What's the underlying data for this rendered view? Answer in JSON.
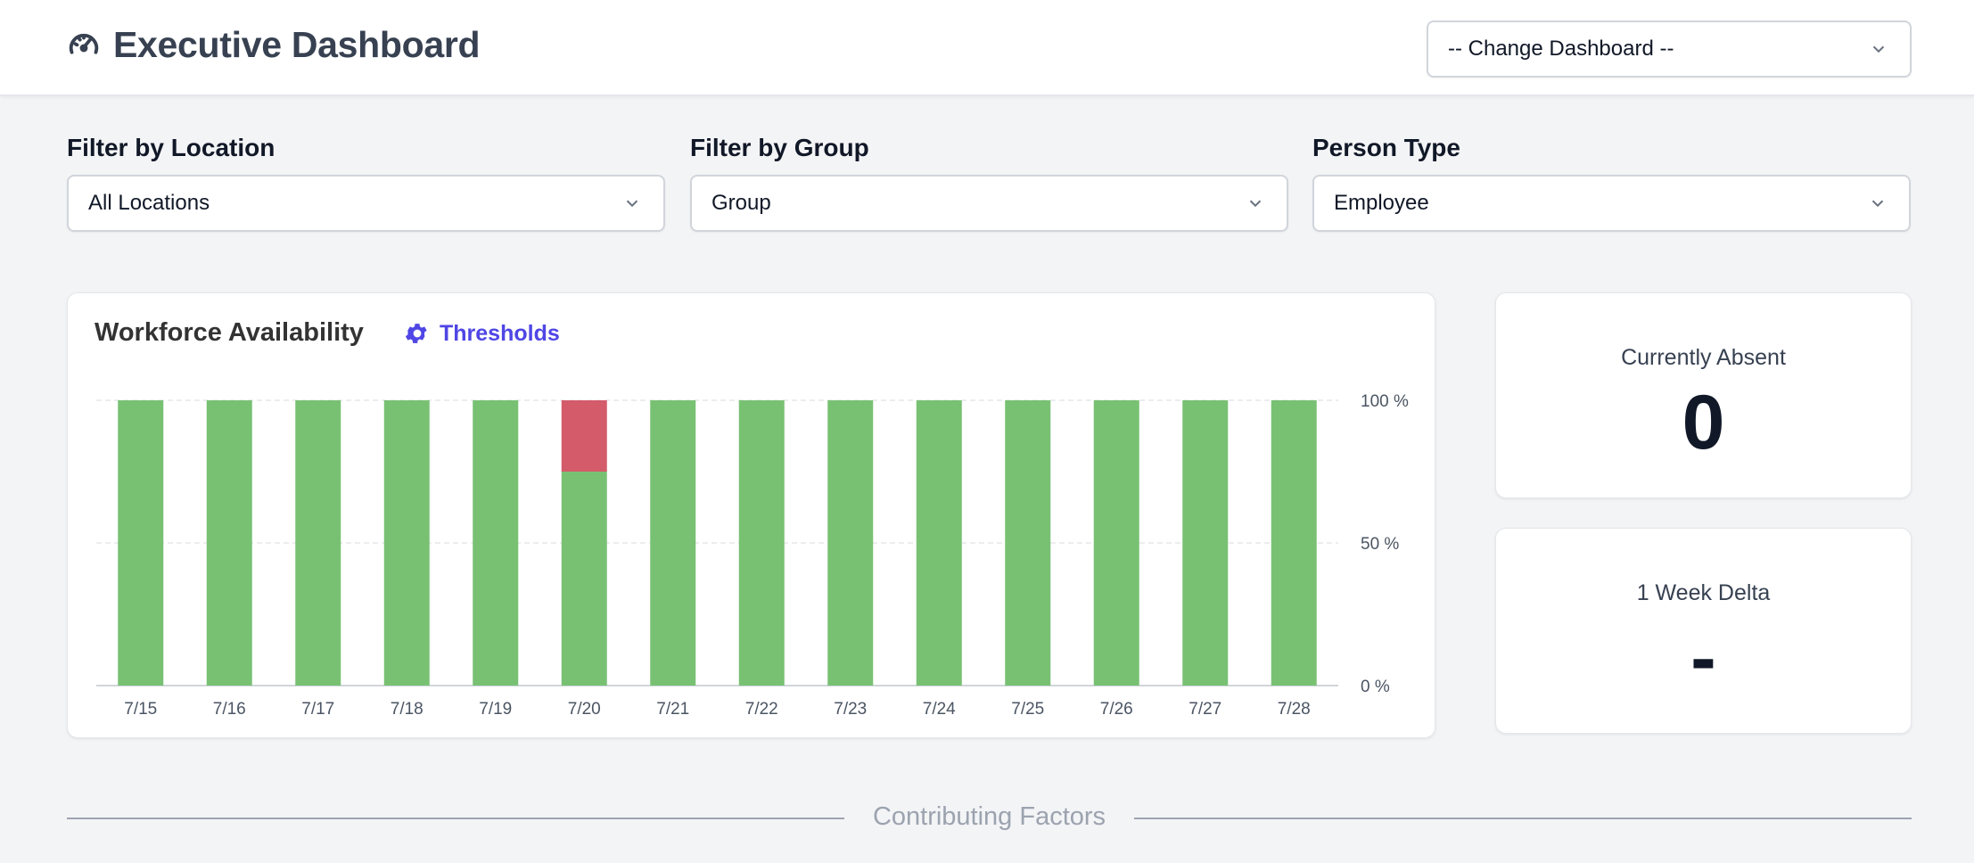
{
  "header": {
    "title": "Executive Dashboard",
    "icon": "gauge-icon",
    "dashboard_select": {
      "value": "-- Change Dashboard --"
    }
  },
  "filters": [
    {
      "label": "Filter by Location",
      "value": "All Locations"
    },
    {
      "label": "Filter by Group",
      "value": "Group"
    },
    {
      "label": "Person Type",
      "value": "Employee"
    }
  ],
  "workforce_card": {
    "title": "Workforce Availability",
    "thresholds_label": "Thresholds",
    "thresholds_icon": "gear-icon"
  },
  "kpis": [
    {
      "label": "Currently Absent",
      "value": "0"
    },
    {
      "label": "1 Week Delta",
      "value": "-"
    }
  ],
  "section": {
    "title": "Contributing Factors"
  },
  "colors": {
    "available": "#78c173",
    "unavailable": "#d45b6a",
    "accent": "#4f46e5"
  },
  "chart_data": {
    "type": "bar",
    "stacked": true,
    "categories": [
      "7/15",
      "7/16",
      "7/17",
      "7/18",
      "7/19",
      "7/20",
      "7/21",
      "7/22",
      "7/23",
      "7/24",
      "7/25",
      "7/26",
      "7/27",
      "7/28"
    ],
    "series": [
      {
        "values": [
          100,
          100,
          100,
          100,
          100,
          75,
          100,
          100,
          100,
          100,
          100,
          100,
          100,
          100
        ],
        "color": "#78c173"
      },
      {
        "values": [
          0,
          0,
          0,
          0,
          0,
          25,
          0,
          0,
          0,
          0,
          0,
          0,
          0,
          0
        ],
        "color": "#d45b6a"
      }
    ],
    "y_ticks": [
      "100 %",
      "50 %",
      "0 %"
    ],
    "ylim": [
      0,
      100
    ],
    "y_axis_position": "right",
    "grid": true,
    "title": ""
  }
}
